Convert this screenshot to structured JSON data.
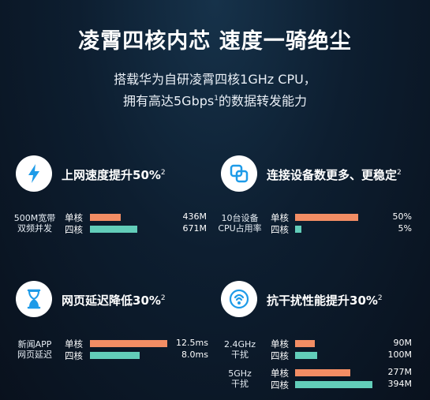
{
  "title": "凌霄四核内芯  速度一骑绝尘",
  "subtitle": {
    "line1": "搭载华为自研凌霄四核1GHz CPU，",
    "line2_pre": "拥有高达5Gbps",
    "line2_sup": "1",
    "line2_post": "的数据转发能力"
  },
  "colors": {
    "single": "#f28d64",
    "quad": "#62cdb9",
    "icon_bg": "#ffffff",
    "icon_fg": "#1e9be8"
  },
  "labels": {
    "single": "单核",
    "quad": "四核"
  },
  "panels": {
    "speed": {
      "icon": "lightning-icon",
      "title": "上网速度提升50%",
      "sup": "2",
      "side": [
        "500M宽带",
        "双频并发"
      ],
      "single": {
        "value": "436M",
        "fraction": 0.39
      },
      "quad": {
        "value": "671M",
        "fraction": 0.6
      }
    },
    "devices": {
      "icon": "devices-icon",
      "title": "连接设备数更多、更稳定",
      "sup": "2",
      "side": [
        "10台设备",
        "CPU占用率"
      ],
      "single": {
        "value": "50%",
        "fraction": 0.8
      },
      "quad": {
        "value": "5%",
        "fraction": 0.08
      }
    },
    "latency": {
      "icon": "hourglass-icon",
      "title": "网页延迟降低30%",
      "sup": "2",
      "side": [
        "新闻APP",
        "网页延迟"
      ],
      "single": {
        "value": "12.5ms",
        "fraction": 0.98
      },
      "quad": {
        "value": "8.0ms",
        "fraction": 0.63
      }
    },
    "interference": {
      "icon": "anti-interference-icon",
      "title": "抗干扰性能提升30%",
      "sup": "2",
      "groups": [
        {
          "side": [
            "2.4GHz",
            "干扰"
          ],
          "single": {
            "value": "90M",
            "fraction": 0.25
          },
          "quad": {
            "value": "100M",
            "fraction": 0.28
          }
        },
        {
          "side": [
            "5GHz",
            "干扰"
          ],
          "single": {
            "value": "277M",
            "fraction": 0.7
          },
          "quad": {
            "value": "394M",
            "fraction": 0.98
          }
        }
      ]
    }
  }
}
